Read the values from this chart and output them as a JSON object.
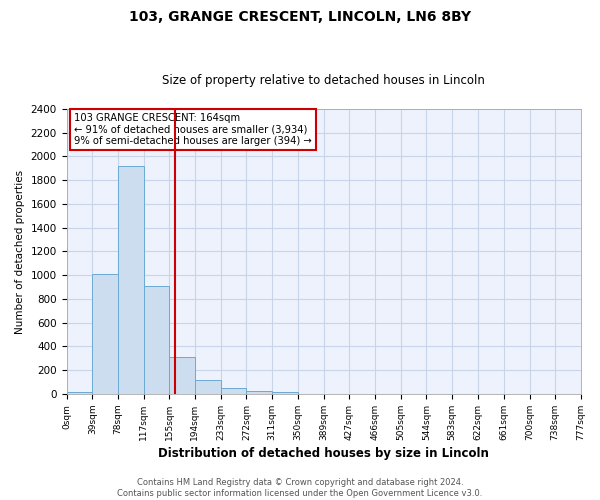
{
  "title": "103, GRANGE CRESCENT, LINCOLN, LN6 8BY",
  "subtitle": "Size of property relative to detached houses in Lincoln",
  "xlabel": "Distribution of detached houses by size in Lincoln",
  "ylabel": "Number of detached properties",
  "bar_edges": [
    0,
    39,
    78,
    117,
    155,
    194,
    233,
    272,
    311,
    350,
    389,
    427,
    466,
    505,
    544,
    583,
    622,
    661,
    700,
    738,
    777
  ],
  "bar_values": [
    15,
    1010,
    1920,
    910,
    310,
    115,
    50,
    25,
    20,
    0,
    0,
    0,
    0,
    0,
    0,
    0,
    0,
    0,
    0,
    0
  ],
  "property_size": 164,
  "annotation_text": "103 GRANGE CRESCENT: 164sqm\n← 91% of detached houses are smaller (3,934)\n9% of semi-detached houses are larger (394) →",
  "annotation_box_color": "#ffffff",
  "annotation_border_color": "#cc0000",
  "bar_face_color": "#ccddf0",
  "bar_edge_color": "#6aaad4",
  "red_line_color": "#cc0000",
  "ylim": [
    0,
    2400
  ],
  "yticks": [
    0,
    200,
    400,
    600,
    800,
    1000,
    1200,
    1400,
    1600,
    1800,
    2000,
    2200,
    2400
  ],
  "grid_color": "#c8d4e8",
  "bg_color": "#eef2fc",
  "fig_bg_color": "#ffffff",
  "footer_text": "Contains HM Land Registry data © Crown copyright and database right 2024.\nContains public sector information licensed under the Open Government Licence v3.0."
}
